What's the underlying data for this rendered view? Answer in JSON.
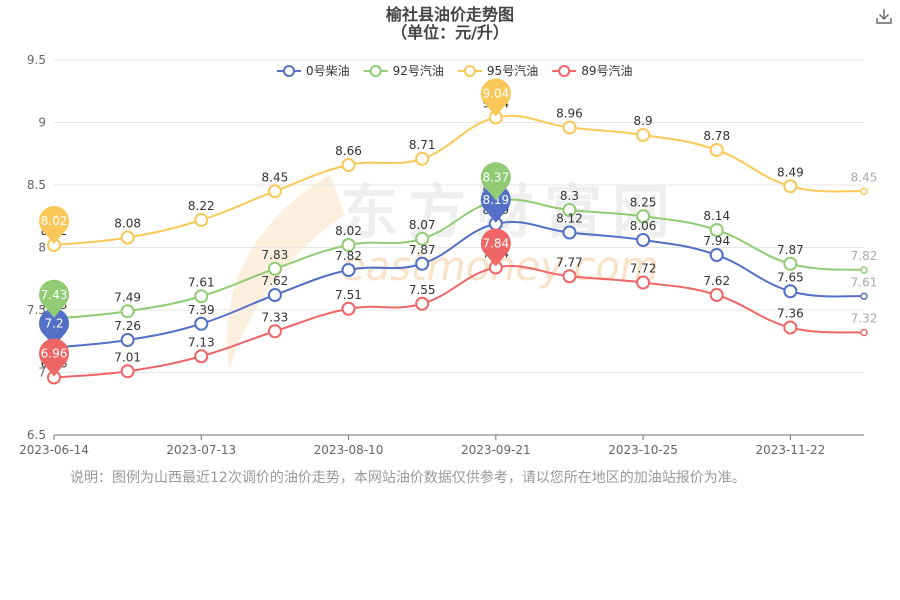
{
  "title": "榆社县油价走势图",
  "subtitle": "（单位：元/升）",
  "note": "说明：图例为山西最近12次调价的油价走势，本网站油价数据仅供参考，请以您所在地区的加油站报价为准。",
  "watermark": "东方财富网",
  "watermark_en": "eastmoney.com",
  "download_icon": "download-icon",
  "chart_data": {
    "type": "line",
    "title": "榆社县油价走势图",
    "subtitle": "（单位：元/升）",
    "ylim": [
      6.5,
      9.5
    ],
    "y_ticks": [
      "6.5",
      "7",
      "7.5",
      "8",
      "8.5",
      "9",
      "9.5"
    ],
    "x_tick_labels": [
      "2023-06-14",
      "2023-07-13",
      "2023-08-10",
      "2023-09-21",
      "2023-10-25",
      "2023-11-22"
    ],
    "x_tick_indices": [
      0,
      2,
      4,
      6,
      8,
      10
    ],
    "x_count": 12,
    "grid": true,
    "legend_position": "top",
    "series": [
      {
        "name": "0号柴油",
        "color": "#5470c6",
        "values": [
          7.2,
          7.26,
          7.39,
          7.62,
          7.82,
          7.87,
          8.19,
          8.12,
          8.06,
          7.94,
          7.65,
          7.61
        ],
        "max_label": "8.19",
        "min_label": "7.2"
      },
      {
        "name": "92号汽油",
        "color": "#91cc75",
        "values": [
          7.43,
          7.49,
          7.61,
          7.83,
          8.02,
          8.07,
          8.37,
          8.3,
          8.25,
          8.14,
          7.87,
          7.82
        ],
        "max_label": "8.37",
        "min_label": "7.43"
      },
      {
        "name": "95号汽油",
        "color": "#fac858",
        "values": [
          8.02,
          8.08,
          8.22,
          8.45,
          8.66,
          8.71,
          9.04,
          8.96,
          8.9,
          8.78,
          8.49,
          8.45
        ],
        "max_label": "9.04",
        "min_label": "8.02"
      },
      {
        "name": "89号汽油",
        "color": "#ee6666",
        "values": [
          6.96,
          7.01,
          7.13,
          7.33,
          7.51,
          7.55,
          7.84,
          7.77,
          7.72,
          7.62,
          7.36,
          7.32
        ],
        "max_label": "7.84",
        "min_label": "6.96"
      }
    ]
  }
}
